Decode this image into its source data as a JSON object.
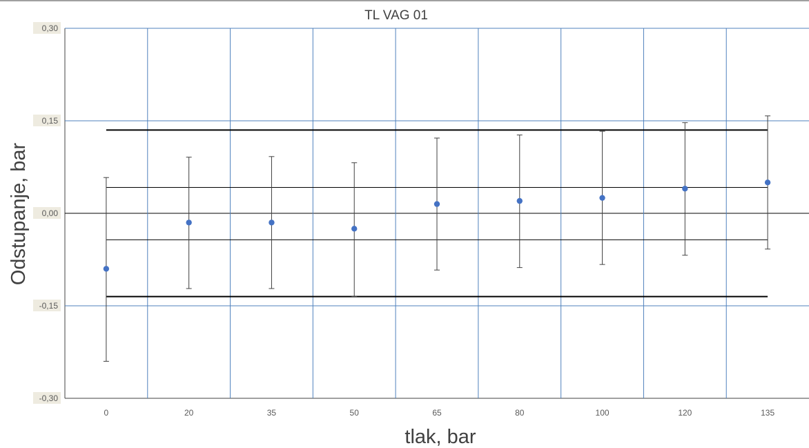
{
  "chart_data": {
    "type": "scatter",
    "title": "TL VAG 01",
    "xlabel": "tlak, bar",
    "ylabel": "Odstupanje, bar",
    "categories": [
      "0",
      "20",
      "35",
      "50",
      "65",
      "80",
      "100",
      "120",
      "135"
    ],
    "ylim": [
      -0.3,
      0.3
    ],
    "y_ticks": [
      "0,30",
      "0,15",
      "0,00",
      "-0,15",
      "-0,30"
    ],
    "y_tick_values": [
      0.3,
      0.15,
      0.0,
      -0.15,
      -0.3
    ],
    "grid": true,
    "series": [
      {
        "values": [
          -0.09,
          -0.015,
          -0.015,
          -0.025,
          0.015,
          0.02,
          0.025,
          0.04,
          0.05
        ],
        "error_low": [
          -0.24,
          -0.122,
          -0.122,
          -0.135,
          -0.092,
          -0.088,
          -0.083,
          -0.068,
          -0.058
        ],
        "error_high": [
          0.058,
          0.091,
          0.092,
          0.082,
          0.122,
          0.127,
          0.133,
          0.147,
          0.158
        ],
        "color": "#4472C4"
      }
    ],
    "reference_lines": [
      {
        "y": 0.135,
        "style": "thick"
      },
      {
        "y": 0.042,
        "style": "thin"
      },
      {
        "y": -0.043,
        "style": "thin"
      },
      {
        "y": -0.135,
        "style": "thick"
      }
    ],
    "colors": {
      "grid": "#4F81BD",
      "marker": "#4472C4",
      "line": "#000000",
      "error_bar": "#404040"
    }
  }
}
